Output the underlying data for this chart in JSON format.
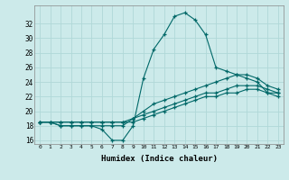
{
  "xlabel": "Humidex (Indice chaleur)",
  "background_color": "#cceaea",
  "line_color": "#006868",
  "grid_color": "#b0d8d8",
  "x_values": [
    0,
    1,
    2,
    3,
    4,
    5,
    6,
    7,
    8,
    9,
    10,
    11,
    12,
    13,
    14,
    15,
    16,
    17,
    18,
    19,
    20,
    21,
    22,
    23
  ],
  "series1": [
    18.5,
    18.5,
    18.0,
    18.0,
    18.0,
    18.0,
    17.5,
    16.0,
    16.0,
    18.0,
    24.5,
    28.5,
    30.5,
    33.0,
    33.5,
    32.5,
    30.5,
    26.0,
    25.5,
    25.0,
    24.5,
    24.0,
    22.5,
    22.5
  ],
  "series2": [
    18.5,
    18.5,
    18.0,
    18.0,
    18.0,
    18.0,
    18.0,
    18.0,
    18.0,
    19.0,
    20.0,
    21.0,
    21.5,
    22.0,
    22.5,
    23.0,
    23.5,
    24.0,
    24.5,
    25.0,
    25.0,
    24.5,
    23.5,
    23.0
  ],
  "series3": [
    18.5,
    18.5,
    18.5,
    18.5,
    18.5,
    18.5,
    18.5,
    18.5,
    18.5,
    19.0,
    19.5,
    20.0,
    20.5,
    21.0,
    21.5,
    22.0,
    22.5,
    22.5,
    23.0,
    23.5,
    23.5,
    23.5,
    23.0,
    22.5
  ],
  "series4": [
    18.5,
    18.5,
    18.5,
    18.5,
    18.5,
    18.5,
    18.5,
    18.5,
    18.5,
    18.5,
    19.0,
    19.5,
    20.0,
    20.5,
    21.0,
    21.5,
    22.0,
    22.0,
    22.5,
    22.5,
    23.0,
    23.0,
    22.5,
    22.0
  ],
  "ylim": [
    15.5,
    34.5
  ],
  "xlim": [
    -0.5,
    23.5
  ],
  "yticks": [
    16,
    18,
    20,
    22,
    24,
    26,
    28,
    30,
    32
  ],
  "xticks": [
    0,
    1,
    2,
    3,
    4,
    5,
    6,
    7,
    8,
    9,
    10,
    11,
    12,
    13,
    14,
    15,
    16,
    17,
    18,
    19,
    20,
    21,
    22,
    23
  ]
}
